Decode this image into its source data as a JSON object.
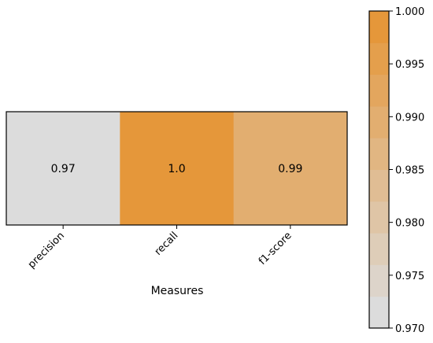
{
  "chart_data": {
    "type": "heatmap",
    "x_categories": [
      "precision",
      "recall",
      "f1-score"
    ],
    "values": [
      0.97,
      1.0,
      0.99
    ],
    "value_labels": [
      "0.97",
      "1.0",
      "0.99"
    ],
    "xlabel": "Measures",
    "ylabel": "",
    "title": "",
    "colorbar": {
      "range": [
        0.97,
        1.0
      ],
      "ticks": [
        0.97,
        0.975,
        0.98,
        0.985,
        0.99,
        0.995,
        1.0
      ],
      "tick_labels": [
        "0.970",
        "0.975",
        "0.980",
        "0.985",
        "0.990",
        "0.995",
        "1.000"
      ],
      "low_color": "#dcdcdc",
      "high_color": "#e5973a",
      "levels": 10
    }
  }
}
